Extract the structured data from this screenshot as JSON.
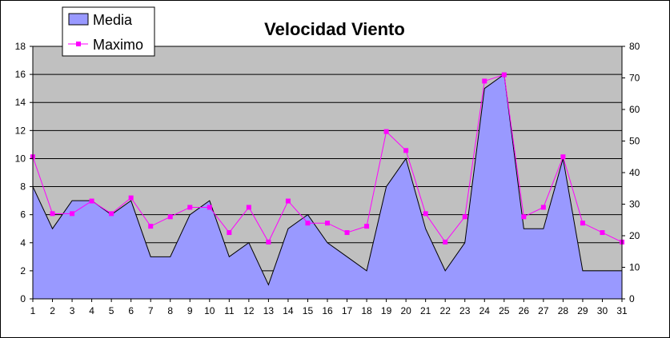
{
  "chart_data": {
    "type": "area",
    "title": "Velocidad Viento",
    "x": [
      1,
      2,
      3,
      4,
      5,
      6,
      7,
      8,
      9,
      10,
      11,
      12,
      13,
      14,
      15,
      16,
      17,
      18,
      19,
      20,
      21,
      22,
      23,
      24,
      25,
      26,
      27,
      28,
      29,
      30,
      31
    ],
    "series": [
      {
        "name": "Media",
        "kind": "area",
        "axis": "left",
        "color": "#9999ff",
        "values": [
          8,
          5,
          7,
          7,
          6,
          7,
          3,
          3,
          6,
          7,
          3,
          4,
          1,
          5,
          6,
          4,
          3,
          2,
          8,
          10,
          5,
          2,
          4,
          15,
          16,
          5,
          5,
          10,
          2,
          2,
          2
        ]
      },
      {
        "name": "Maximo",
        "kind": "line",
        "axis": "right",
        "color": "#ff00ff",
        "values": [
          45,
          27,
          27,
          31,
          27,
          32,
          23,
          26,
          29,
          29,
          21,
          29,
          18,
          31,
          24,
          24,
          21,
          23,
          53,
          47,
          27,
          18,
          26,
          69,
          71,
          26,
          29,
          45,
          24,
          21,
          18
        ]
      }
    ],
    "y_left": {
      "min": 0,
      "max": 18,
      "step": 2
    },
    "y_right": {
      "min": 0,
      "max": 80,
      "step": 10
    },
    "grid": true,
    "plot_background": "#c0c0c0",
    "legend_position": "top-left"
  }
}
